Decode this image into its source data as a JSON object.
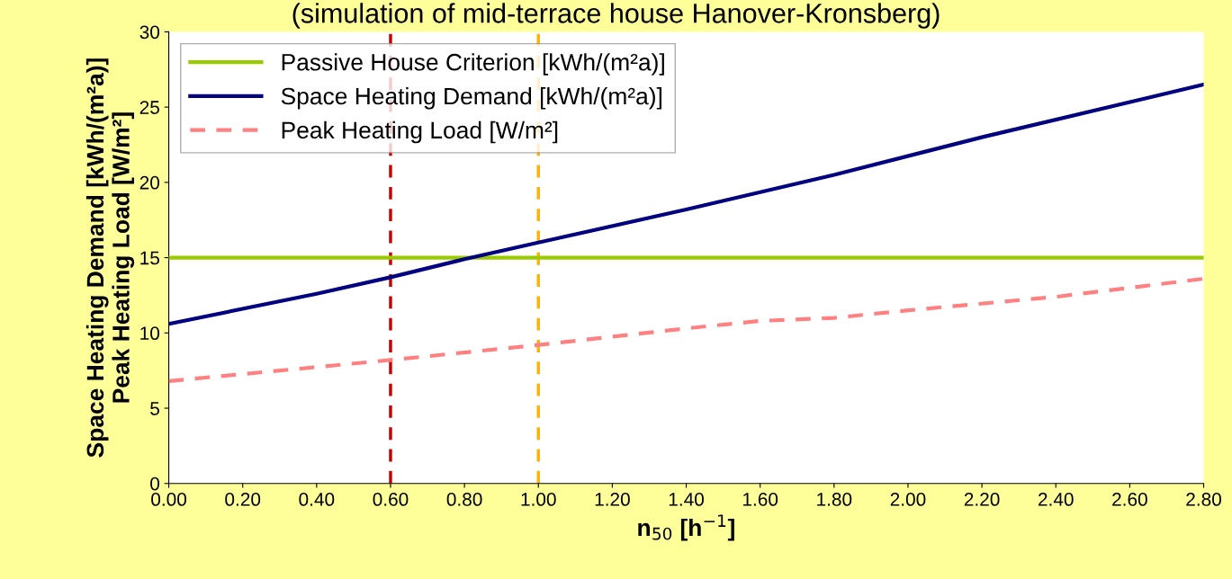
{
  "chart_data": {
    "type": "line",
    "title": "(simulation of mid-terrace house Hanover-Kronsberg)",
    "xlabel": "n$_{50}$ [h$^{−1}$]",
    "ylabel": "Space Heating Demand [kWh/(m²a)]\nPeak Heating Load [W/m²]",
    "xlim": [
      0,
      2.8
    ],
    "ylim": [
      0,
      30
    ],
    "xticks": [
      {
        "value": 0,
        "label": "0.00"
      },
      {
        "value": 0.2,
        "label": "0.20"
      },
      {
        "value": 0.4,
        "label": "0.40"
      },
      {
        "value": 0.6,
        "label": "0.60"
      },
      {
        "value": 0.8,
        "label": "0.80"
      },
      {
        "value": 1.0,
        "label": "1.00"
      },
      {
        "value": 1.2,
        "label": "1.20"
      },
      {
        "value": 1.4,
        "label": "1.40"
      },
      {
        "value": 1.6,
        "label": "1.60"
      },
      {
        "value": 1.8,
        "label": "1.80"
      },
      {
        "value": 2.0,
        "label": "2.00"
      },
      {
        "value": 2.2,
        "label": "2.20"
      },
      {
        "value": 2.4,
        "label": "2.40"
      },
      {
        "value": 2.6,
        "label": "2.60"
      },
      {
        "value": 2.8,
        "label": "2.80"
      }
    ],
    "yticks": [
      0,
      5,
      10,
      15,
      20,
      25,
      30
    ],
    "series": [
      {
        "name": "Passive House Criterion [kWh/(m²a)]",
        "color": "#99cc00",
        "x": [
          0,
          2.8
        ],
        "values": [
          15,
          15
        ],
        "line_style": "solid"
      },
      {
        "name": "Space Heating Demand [kWh/(m²a)]",
        "color": "#000080",
        "x": [
          0,
          0.4,
          0.6,
          0.8,
          1.0,
          1.4,
          1.8,
          2.2,
          2.8
        ],
        "values": [
          10.6,
          12.6,
          13.7,
          14.9,
          16.0,
          18.2,
          20.5,
          23.0,
          26.5
        ],
        "line_style": "solid"
      },
      {
        "name": "Peak Heating Load [W/m²]",
        "color": "#ff8080",
        "x": [
          0,
          0.6,
          1.0,
          1.4,
          1.6,
          1.8,
          2.0,
          2.4,
          2.8
        ],
        "values": [
          6.8,
          8.2,
          9.2,
          10.3,
          10.8,
          11.0,
          11.5,
          12.4,
          13.6
        ],
        "line_style": "dashed"
      }
    ],
    "ref_lines": [
      {
        "axis": "x",
        "value": 0.6,
        "color": "#cc0000",
        "line_style": "dashed"
      },
      {
        "axis": "x",
        "value": 1.0,
        "color": "#ffb300",
        "line_style": "dashed"
      }
    ],
    "legend": "top left",
    "grid": false,
    "marker": "none"
  }
}
